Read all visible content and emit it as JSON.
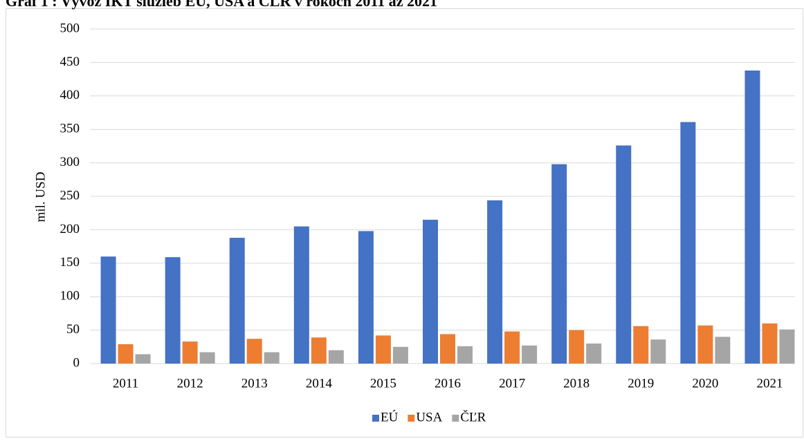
{
  "chart_data": {
    "type": "bar",
    "title": "Graf 1 : Vývoz IKT služieb EÚ, USA a ČĽR v rokoch 2011 až 2021",
    "y_label": "mil. USD",
    "categories": [
      "2011",
      "2012",
      "2013",
      "2014",
      "2015",
      "2016",
      "2017",
      "2018",
      "2019",
      "2020",
      "2021"
    ],
    "series": [
      {
        "name": "EÚ",
        "color": "#4472c4",
        "values": [
          160,
          159,
          188,
          205,
          198,
          215,
          244,
          298,
          326,
          361,
          438
        ]
      },
      {
        "name": "USA",
        "color": "#ed7d31",
        "values": [
          29,
          33,
          37,
          39,
          42,
          44,
          48,
          50,
          56,
          57,
          60
        ]
      },
      {
        "name": "ČĽR",
        "color": "#a5a5a5",
        "values": [
          14,
          17,
          17,
          20,
          25,
          26,
          27,
          30,
          36,
          40,
          51
        ]
      }
    ],
    "ylim": [
      0,
      500
    ],
    "yticks": [
      0,
      50,
      100,
      150,
      200,
      250,
      300,
      350,
      400,
      450,
      500
    ],
    "grid": true,
    "legend": "bottom"
  }
}
